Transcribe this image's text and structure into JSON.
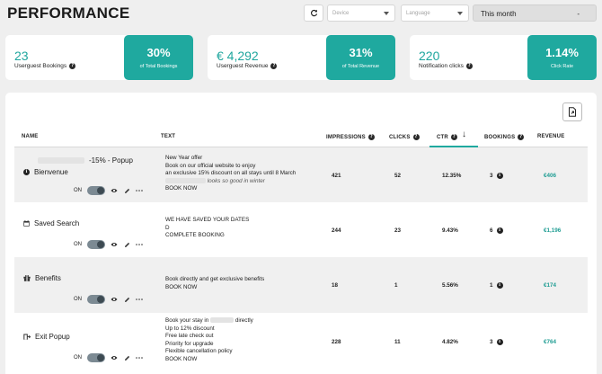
{
  "header": {
    "title": "PERFORMANCE",
    "device_placeholder": "Device",
    "language_placeholder": "Language",
    "period_value": "This month",
    "period_dash": "-"
  },
  "kpis": [
    {
      "value": "23",
      "label": "Userguest Bookings",
      "pct": "30%",
      "pct_label": "of Total Bookings"
    },
    {
      "value": "€ 4,292",
      "label": "Userguest Revenue",
      "pct": "31%",
      "pct_label": "of Total Revenue"
    },
    {
      "value": "220",
      "label": "Notification clicks",
      "pct": "1.14%",
      "pct_label": "Click Rate"
    }
  ],
  "table": {
    "columns": {
      "name": "NAME",
      "text": "TEXT",
      "impressions": "IMPRESSIONS",
      "clicks": "CLICKS",
      "ctr": "CTR",
      "bookings": "BOOKINGS",
      "revenue": "REVENUE"
    },
    "sort_arrow": "↓",
    "rows": [
      {
        "name_prefix": "",
        "name_suffix": "-15% - Popup",
        "name_line2": "Bienvenue",
        "status": "ON",
        "text": [
          "New Year offer",
          "Book on our official website to enjoy",
          "an exclusive 15% discount on all stays until 8 March",
          "looks so good in winter",
          "BOOK NOW"
        ],
        "impressions": "421",
        "clicks": "52",
        "ctr": "12.35%",
        "bookings": "3",
        "revenue": "€406"
      },
      {
        "name": "Saved Search",
        "status": "ON",
        "text": [
          "WE HAVE SAVED YOUR DATES",
          "D",
          "COMPLETE BOOKING"
        ],
        "impressions": "244",
        "clicks": "23",
        "ctr": "9.43%",
        "bookings": "6",
        "revenue": "€1,196"
      },
      {
        "name": "Benefits",
        "status": "ON",
        "text": [
          "Book directly and get exclusive benefits",
          "BOOK NOW"
        ],
        "impressions": "18",
        "clicks": "1",
        "ctr": "5.56%",
        "bookings": "1",
        "revenue": "€174"
      },
      {
        "name": "Exit Popup",
        "status": "ON",
        "text": [
          "Book your stay in",
          "directly",
          "Up to 12% discount",
          "Free late check out",
          "Priority for upgrade",
          "Flexible cancellation policy",
          "BOOK NOW"
        ],
        "impressions": "228",
        "clicks": "11",
        "ctr": "4.82%",
        "bookings": "3",
        "revenue": "€764"
      }
    ]
  },
  "colors": {
    "accent": "#1fa99f",
    "background": "#efefef"
  }
}
